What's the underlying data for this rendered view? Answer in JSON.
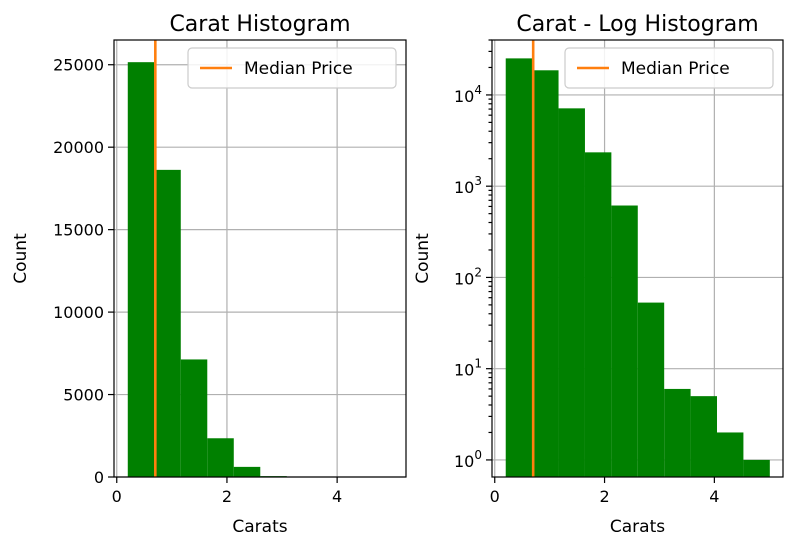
{
  "chart_data": [
    {
      "type": "bar",
      "title": "Carat Histogram",
      "xlabel": "Carats",
      "ylabel": "Count",
      "xlim": [
        -0.05,
        5.25
      ],
      "ylim": [
        0,
        26500
      ],
      "scale_y": "linear",
      "grid": true,
      "bar_color": "#008000",
      "bin_edges": [
        0.2,
        0.681,
        1.162,
        1.643,
        2.124,
        2.605,
        3.086,
        3.567,
        4.048,
        4.529,
        5.01
      ],
      "values": [
        25155,
        18625,
        7129,
        2349,
        614,
        53,
        6,
        5,
        2,
        1
      ],
      "xticks": [
        {
          "value": 0,
          "label": "0"
        },
        {
          "value": 2,
          "label": "2"
        },
        {
          "value": 4,
          "label": "4"
        }
      ],
      "yticks": [
        {
          "value": 0,
          "label": "0"
        },
        {
          "value": 5000,
          "label": "5000"
        },
        {
          "value": 10000,
          "label": "10000"
        },
        {
          "value": 15000,
          "label": "15000"
        },
        {
          "value": 20000,
          "label": "20000"
        },
        {
          "value": 25000,
          "label": "25000"
        }
      ],
      "median_line": {
        "x": 0.7,
        "color": "#ff7f0e",
        "label": "Median Price"
      },
      "legend_position": "upper right"
    },
    {
      "type": "bar",
      "title": "Carat - Log Histogram",
      "xlabel": "Carats",
      "ylabel": "Count",
      "xlim": [
        -0.05,
        5.25
      ],
      "ylim": [
        0.65,
        40000
      ],
      "scale_y": "log",
      "grid": true,
      "bar_color": "#008000",
      "bin_edges": [
        0.2,
        0.681,
        1.162,
        1.643,
        2.124,
        2.605,
        3.086,
        3.567,
        4.048,
        4.529,
        5.01
      ],
      "values": [
        25155,
        18625,
        7129,
        2349,
        614,
        53,
        6,
        5,
        2,
        1
      ],
      "xticks": [
        {
          "value": 0,
          "label": "0"
        },
        {
          "value": 2,
          "label": "2"
        },
        {
          "value": 4,
          "label": "4"
        }
      ],
      "yticks": [
        {
          "value": 1,
          "base": "10",
          "exp": "0"
        },
        {
          "value": 10,
          "base": "10",
          "exp": "1"
        },
        {
          "value": 100,
          "base": "10",
          "exp": "2"
        },
        {
          "value": 1000,
          "base": "10",
          "exp": "3"
        },
        {
          "value": 10000,
          "base": "10",
          "exp": "4"
        }
      ],
      "median_line": {
        "x": 0.7,
        "color": "#ff7f0e",
        "label": "Median Price"
      },
      "legend_position": "upper right"
    }
  ]
}
